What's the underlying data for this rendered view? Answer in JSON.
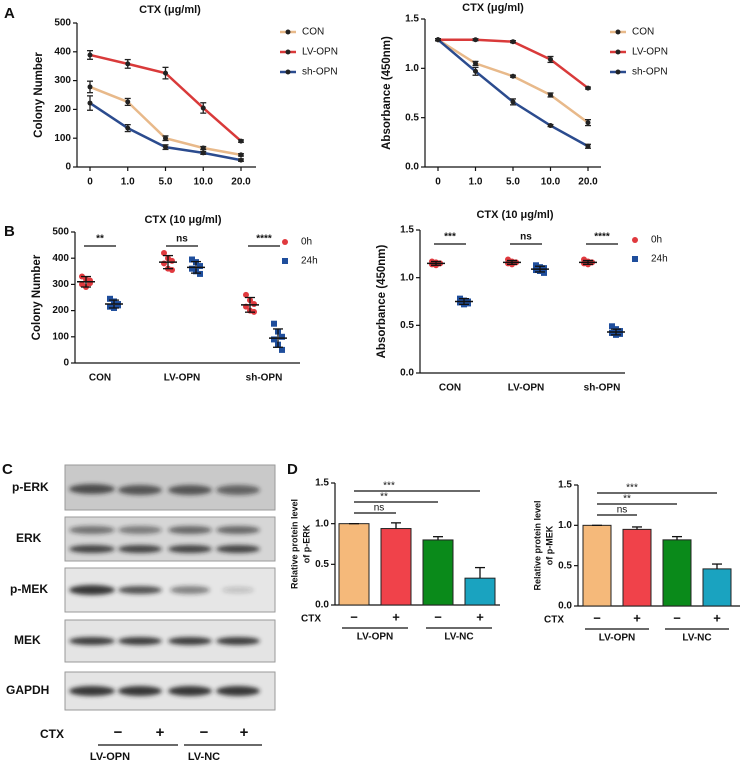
{
  "panel_labels": [
    "A",
    "B",
    "C",
    "D"
  ],
  "chart_data": [
    {
      "type": "line",
      "title": "CTX (μg/ml)",
      "ylabel": [
        "Colony Number"
      ],
      "categories": [
        "0",
        "1.0",
        "5.0",
        "10.0",
        "20.0"
      ],
      "ylim": [
        0,
        500
      ],
      "yticks": [
        0,
        100,
        200,
        300,
        400,
        500
      ],
      "series": [
        {
          "name": "CON",
          "color": "#e8b98a",
          "values": [
            278,
            226,
            100,
            66,
            42
          ],
          "errors": [
            20,
            12,
            8,
            5,
            4
          ]
        },
        {
          "name": "LV-OPN",
          "color": "#d93a3a",
          "values": [
            389,
            358,
            326,
            205,
            90
          ],
          "errors": [
            15,
            15,
            20,
            18,
            4
          ]
        },
        {
          "name": "sh-OPN",
          "color": "#2b4b8e",
          "values": [
            222,
            135,
            69,
            49,
            24
          ],
          "errors": [
            25,
            12,
            8,
            5,
            4
          ]
        }
      ]
    },
    {
      "type": "line",
      "title": "CTX (μg/ml)",
      "ylabel": [
        "Absorbance (450nm)"
      ],
      "categories": [
        "0",
        "1.0",
        "5.0",
        "10.0",
        "20.0"
      ],
      "ylim": [
        0,
        1.5
      ],
      "yticks": [
        {
          "value": 0,
          "label": "0.0"
        },
        0.5,
        {
          "value": 1,
          "label": "1.0"
        },
        1.5
      ],
      "series": [
        {
          "name": "CON",
          "color": "#e8b98a",
          "values": [
            1.29,
            1.05,
            0.92,
            0.73,
            0.45
          ],
          "errors": [
            0.01,
            0.02,
            0.01,
            0.02,
            0.03
          ]
        },
        {
          "name": "LV-OPN",
          "color": "#d93a3a",
          "values": [
            1.29,
            1.29,
            1.27,
            1.09,
            0.8
          ],
          "errors": [
            0.01,
            0.01,
            0.01,
            0.03,
            0.01
          ]
        },
        {
          "name": "sh-OPN",
          "color": "#2b4b8e",
          "values": [
            1.29,
            0.97,
            0.66,
            0.42,
            0.21
          ],
          "errors": [
            0.01,
            0.04,
            0.03,
            0.01,
            0.02
          ]
        }
      ]
    },
    {
      "type": "dot",
      "title": "CTX (10 μg/ml)",
      "ylabel": [
        "Colony Number"
      ],
      "categories": [
        "CON",
        "LV-OPN",
        "sh-OPN"
      ],
      "ylim": [
        0,
        500
      ],
      "yticks": [
        0,
        100,
        200,
        300,
        400,
        500
      ],
      "significance": [
        "**",
        "ns",
        "****"
      ],
      "series": [
        {
          "name": "0h",
          "color": "#e0393e",
          "marker": "circle",
          "values": [
            310,
            385,
            222
          ],
          "errors": [
            20,
            25,
            28
          ],
          "points": [
            [
              330,
              320,
              305,
              300,
              290,
              315
            ],
            [
              420,
              400,
              390,
              380,
              360,
              355
            ],
            [
              260,
              240,
              225,
              215,
              200,
              195
            ]
          ]
        },
        {
          "name": "24h",
          "color": "#1f4e9c",
          "marker": "square",
          "values": [
            225,
            365,
            95
          ],
          "errors": [
            15,
            22,
            35
          ],
          "points": [
            [
              245,
              235,
              225,
              215,
              210,
              220
            ],
            [
              395,
              385,
              370,
              360,
              350,
              340
            ],
            [
              150,
              120,
              100,
              90,
              70,
              50
            ]
          ]
        }
      ]
    },
    {
      "type": "dot",
      "title": "CTX (10 μg/ml)",
      "ylabel": [
        "Absorbance (450nm)"
      ],
      "categories": [
        "CON",
        "LV-OPN",
        "sh-OPN"
      ],
      "ylim": [
        0,
        1.5
      ],
      "yticks": [
        {
          "value": 0,
          "label": "0.0"
        },
        0.5,
        {
          "value": 1,
          "label": "1.0"
        },
        1.5
      ],
      "significance": [
        "***",
        "ns",
        "****"
      ],
      "series": [
        {
          "name": "0h",
          "color": "#e0393e",
          "marker": "circle",
          "values": [
            1.15,
            1.16,
            1.16
          ],
          "errors": [
            0.02,
            0.02,
            0.02
          ],
          "points": [
            [
              1.17,
              1.16,
              1.15,
              1.14,
              1.13,
              1.15
            ],
            [
              1.19,
              1.17,
              1.16,
              1.15,
              1.14,
              1.16
            ],
            [
              1.19,
              1.17,
              1.16,
              1.15,
              1.14,
              1.16
            ]
          ]
        },
        {
          "name": "24h",
          "color": "#1f4e9c",
          "marker": "square",
          "values": [
            0.75,
            1.09,
            0.43
          ],
          "errors": [
            0.03,
            0.03,
            0.03
          ],
          "points": [
            [
              0.78,
              0.76,
              0.75,
              0.74,
              0.72,
              0.73
            ],
            [
              1.13,
              1.11,
              1.1,
              1.08,
              1.07,
              1.05
            ],
            [
              0.49,
              0.46,
              0.44,
              0.42,
              0.4,
              0.41
            ]
          ]
        }
      ]
    },
    {
      "type": "bar",
      "ylabel": [
        "Relative protein level",
        "of p-ERK"
      ],
      "x_label": "CTX",
      "categories": [
        "−",
        "+",
        "−",
        "+"
      ],
      "groups": [
        "LV-OPN",
        "LV-NC"
      ],
      "colors": [
        "#f5b97a",
        "#f0424a",
        "#0a8a1a",
        "#1aa3c0"
      ],
      "values": [
        1.0,
        0.94,
        0.8,
        0.33
      ],
      "errors": [
        0,
        0.07,
        0.04,
        0.13
      ],
      "ylim": [
        0,
        1.5
      ],
      "yticks": [
        {
          "value": 0,
          "label": "0.0"
        },
        0.5,
        {
          "value": 1,
          "label": "1.0"
        },
        1.5
      ],
      "comparisons": [
        "ns",
        "**",
        "***"
      ]
    },
    {
      "type": "bar",
      "ylabel": [
        "Relative protein level",
        "of p-MEK"
      ],
      "x_label": "CTX",
      "categories": [
        "−",
        "+",
        "−",
        "+"
      ],
      "groups": [
        "LV-OPN",
        "LV-NC"
      ],
      "colors": [
        "#f5b97a",
        "#f0424a",
        "#0a8a1a",
        "#1aa3c0"
      ],
      "values": [
        1.0,
        0.95,
        0.82,
        0.46
      ],
      "errors": [
        0,
        0.03,
        0.04,
        0.06
      ],
      "ylim": [
        0,
        1.5
      ],
      "yticks": [
        {
          "value": 0,
          "label": "0.0"
        },
        0.5,
        {
          "value": 1,
          "label": "1.0"
        },
        1.5
      ],
      "comparisons": [
        "ns",
        "**",
        "***"
      ]
    }
  ],
  "blot": {
    "rows": [
      "p-ERK",
      "ERK",
      "p-MEK",
      "MEK",
      "GAPDH"
    ],
    "ctx_label": "CTX",
    "lanes": [
      "−",
      "+",
      "−",
      "+"
    ],
    "groups": [
      "LV-OPN",
      "LV-NC"
    ]
  }
}
